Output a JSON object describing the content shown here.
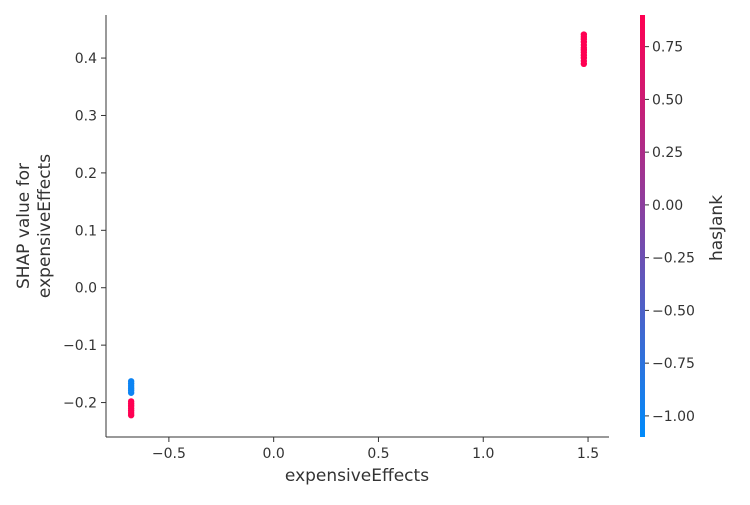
{
  "chart_data": {
    "type": "scatter",
    "xlabel": "expensiveEffects",
    "ylabel_lines": [
      "SHAP value for",
      "expensiveEffects"
    ],
    "colorbar_label": "hasJank",
    "xlim": [
      -0.8,
      1.6
    ],
    "ylim": [
      -0.26,
      0.475
    ],
    "colorbar_lim": [
      -1.1,
      0.9
    ],
    "x_ticks": [
      -0.5,
      0.0,
      0.5,
      1.0,
      1.5
    ],
    "x_tick_labels": [
      "−0.5",
      "0.0",
      "0.5",
      "1.0",
      "1.5"
    ],
    "y_ticks": [
      -0.2,
      -0.1,
      0.0,
      0.1,
      0.2,
      0.3,
      0.4
    ],
    "y_tick_labels": [
      "−0.2",
      "−0.1",
      "0.0",
      "0.1",
      "0.2",
      "0.3",
      "0.4"
    ],
    "colorbar_ticks": [
      -1.0,
      -0.75,
      -0.5,
      -0.25,
      0.0,
      0.25,
      0.5,
      0.75
    ],
    "colorbar_tick_labels": [
      "−1.00",
      "−0.75",
      "−0.50",
      "−0.25",
      "0.00",
      "0.25",
      "0.50",
      "0.75"
    ],
    "colormap": [
      "#008bfb",
      "#ff0052"
    ],
    "grid": false,
    "points": [
      {
        "x": -0.68,
        "y": -0.163,
        "c": -1.0
      },
      {
        "x": -0.68,
        "y": -0.167,
        "c": -1.0
      },
      {
        "x": -0.68,
        "y": -0.171,
        "c": -1.0
      },
      {
        "x": -0.68,
        "y": -0.175,
        "c": -1.0
      },
      {
        "x": -0.68,
        "y": -0.179,
        "c": -1.0
      },
      {
        "x": -0.68,
        "y": -0.183,
        "c": -1.0
      },
      {
        "x": -0.68,
        "y": -0.198,
        "c": 0.9
      },
      {
        "x": -0.68,
        "y": -0.202,
        "c": 0.9
      },
      {
        "x": -0.68,
        "y": -0.206,
        "c": 0.9
      },
      {
        "x": -0.68,
        "y": -0.21,
        "c": 0.9
      },
      {
        "x": -0.68,
        "y": -0.214,
        "c": 0.9
      },
      {
        "x": -0.68,
        "y": -0.218,
        "c": 0.9
      },
      {
        "x": -0.68,
        "y": -0.222,
        "c": 0.9
      },
      {
        "x": 1.48,
        "y": 0.39,
        "c": 0.9
      },
      {
        "x": 1.48,
        "y": 0.395,
        "c": 0.9
      },
      {
        "x": 1.48,
        "y": 0.4,
        "c": 0.9
      },
      {
        "x": 1.48,
        "y": 0.405,
        "c": 0.9
      },
      {
        "x": 1.48,
        "y": 0.41,
        "c": 0.9
      },
      {
        "x": 1.48,
        "y": 0.414,
        "c": 0.9
      },
      {
        "x": 1.48,
        "y": 0.418,
        "c": 0.9
      },
      {
        "x": 1.48,
        "y": 0.423,
        "c": 0.9
      },
      {
        "x": 1.48,
        "y": 0.428,
        "c": 0.9
      },
      {
        "x": 1.48,
        "y": 0.433,
        "c": 0.9
      },
      {
        "x": 1.48,
        "y": 0.437,
        "c": 0.9
      },
      {
        "x": 1.48,
        "y": 0.441,
        "c": 0.9
      }
    ]
  }
}
